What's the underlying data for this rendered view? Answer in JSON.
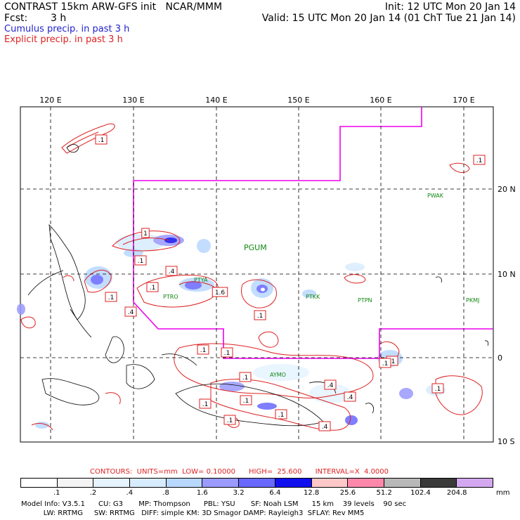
{
  "header": {
    "title": "CONTRAST 15km ARW-GFS init   NCAR/MMM",
    "fcst_label": "Fcst:",
    "fcst_value": "3 h",
    "init": "Init: 12 UTC Mon 20 Jan 14",
    "valid": "Valid: 15 UTC Mon 20 Jan 14 (01 ChT Tue 21 Jan 14)",
    "cumulus": "Cumulus precip. in past 3 h",
    "explicit": "Explicit precip. in past 3 h"
  },
  "colors": {
    "cumulus": "#2222cc",
    "explicit": "#dd2222",
    "boundary": "#ee00ee",
    "stations": "#118811"
  },
  "map": {
    "lon_labels": [
      "120 E",
      "130 E",
      "140 E",
      "150 E",
      "160 E",
      "170 E"
    ],
    "lat_labels": [
      "20 N",
      "10 N",
      "0",
      "10 S"
    ],
    "stations": {
      "pwak": "PWAK",
      "pgum": "PGUM",
      "ptya": "PTYA",
      "ptro": "PTRO",
      "ptkk": "PTKK",
      "ptpn": "PTPN",
      "pkmj": "PKMJ",
      "ayMo": "AYMO"
    },
    "contour_labels": [
      ".1",
      ".1",
      "1",
      ".1",
      ".4",
      ".1",
      ".1",
      ".4",
      "1.6",
      ".1",
      ".1",
      ".1",
      ".1",
      ".1",
      ".1",
      ".4",
      ".4",
      ".1",
      ".4",
      ".1",
      ".1",
      ".1",
      ".1"
    ]
  },
  "footer": {
    "contours_line": "CONTOURS:  UNITS=mm  LOW= 0.10000      HIGH=  25.600      INTERVAL=X  4.0000",
    "colorbar": {
      "ticks": [
        ".1",
        ".2",
        ".4",
        ".8",
        "1.6",
        "3.2",
        "6.4",
        "12.8",
        "25.6",
        "51.2",
        "102.4",
        "204.8"
      ],
      "unit": "mm",
      "colors": [
        "#ffffff",
        "#f4f4f4",
        "#e6f4ff",
        "#d8ecff",
        "#b8d8ff",
        "#9a9aff",
        "#6868ff",
        "#1010ee",
        "#ffc8c8",
        "#ff88aa",
        "#b8b8b8",
        "#3a3a3a",
        "#d4a8f0"
      ]
    },
    "model_line1": "Model Info: V3.5.1      CU: G3       MP: Thompson      PBL: YSU       SF: Noah LSM      15 km    39 levels    90 sec",
    "model_line2": "          LW: RRTMG     SW: RRTMG   DIFF: simple KM: 3D Smagor DAMP: Rayleigh3  SFLAY: Rev MM5"
  }
}
